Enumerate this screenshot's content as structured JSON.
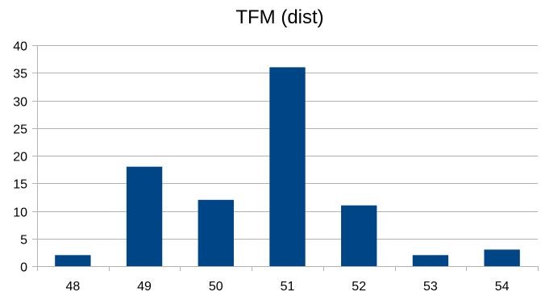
{
  "chart_data": {
    "type": "bar",
    "title": "TFM (dist)",
    "xlabel": "",
    "ylabel": "",
    "categories": [
      "48",
      "49",
      "50",
      "51",
      "52",
      "53",
      "54"
    ],
    "values": [
      2,
      18,
      12,
      36,
      11,
      2,
      3
    ],
    "ylim": [
      0,
      40
    ],
    "yticks": [
      "0",
      "5",
      "10",
      "15",
      "20",
      "25",
      "30",
      "35",
      "40"
    ],
    "grid": "horizontal",
    "legend": "none",
    "bar_color": "#004586",
    "grid_color": "#b3b3b3"
  }
}
